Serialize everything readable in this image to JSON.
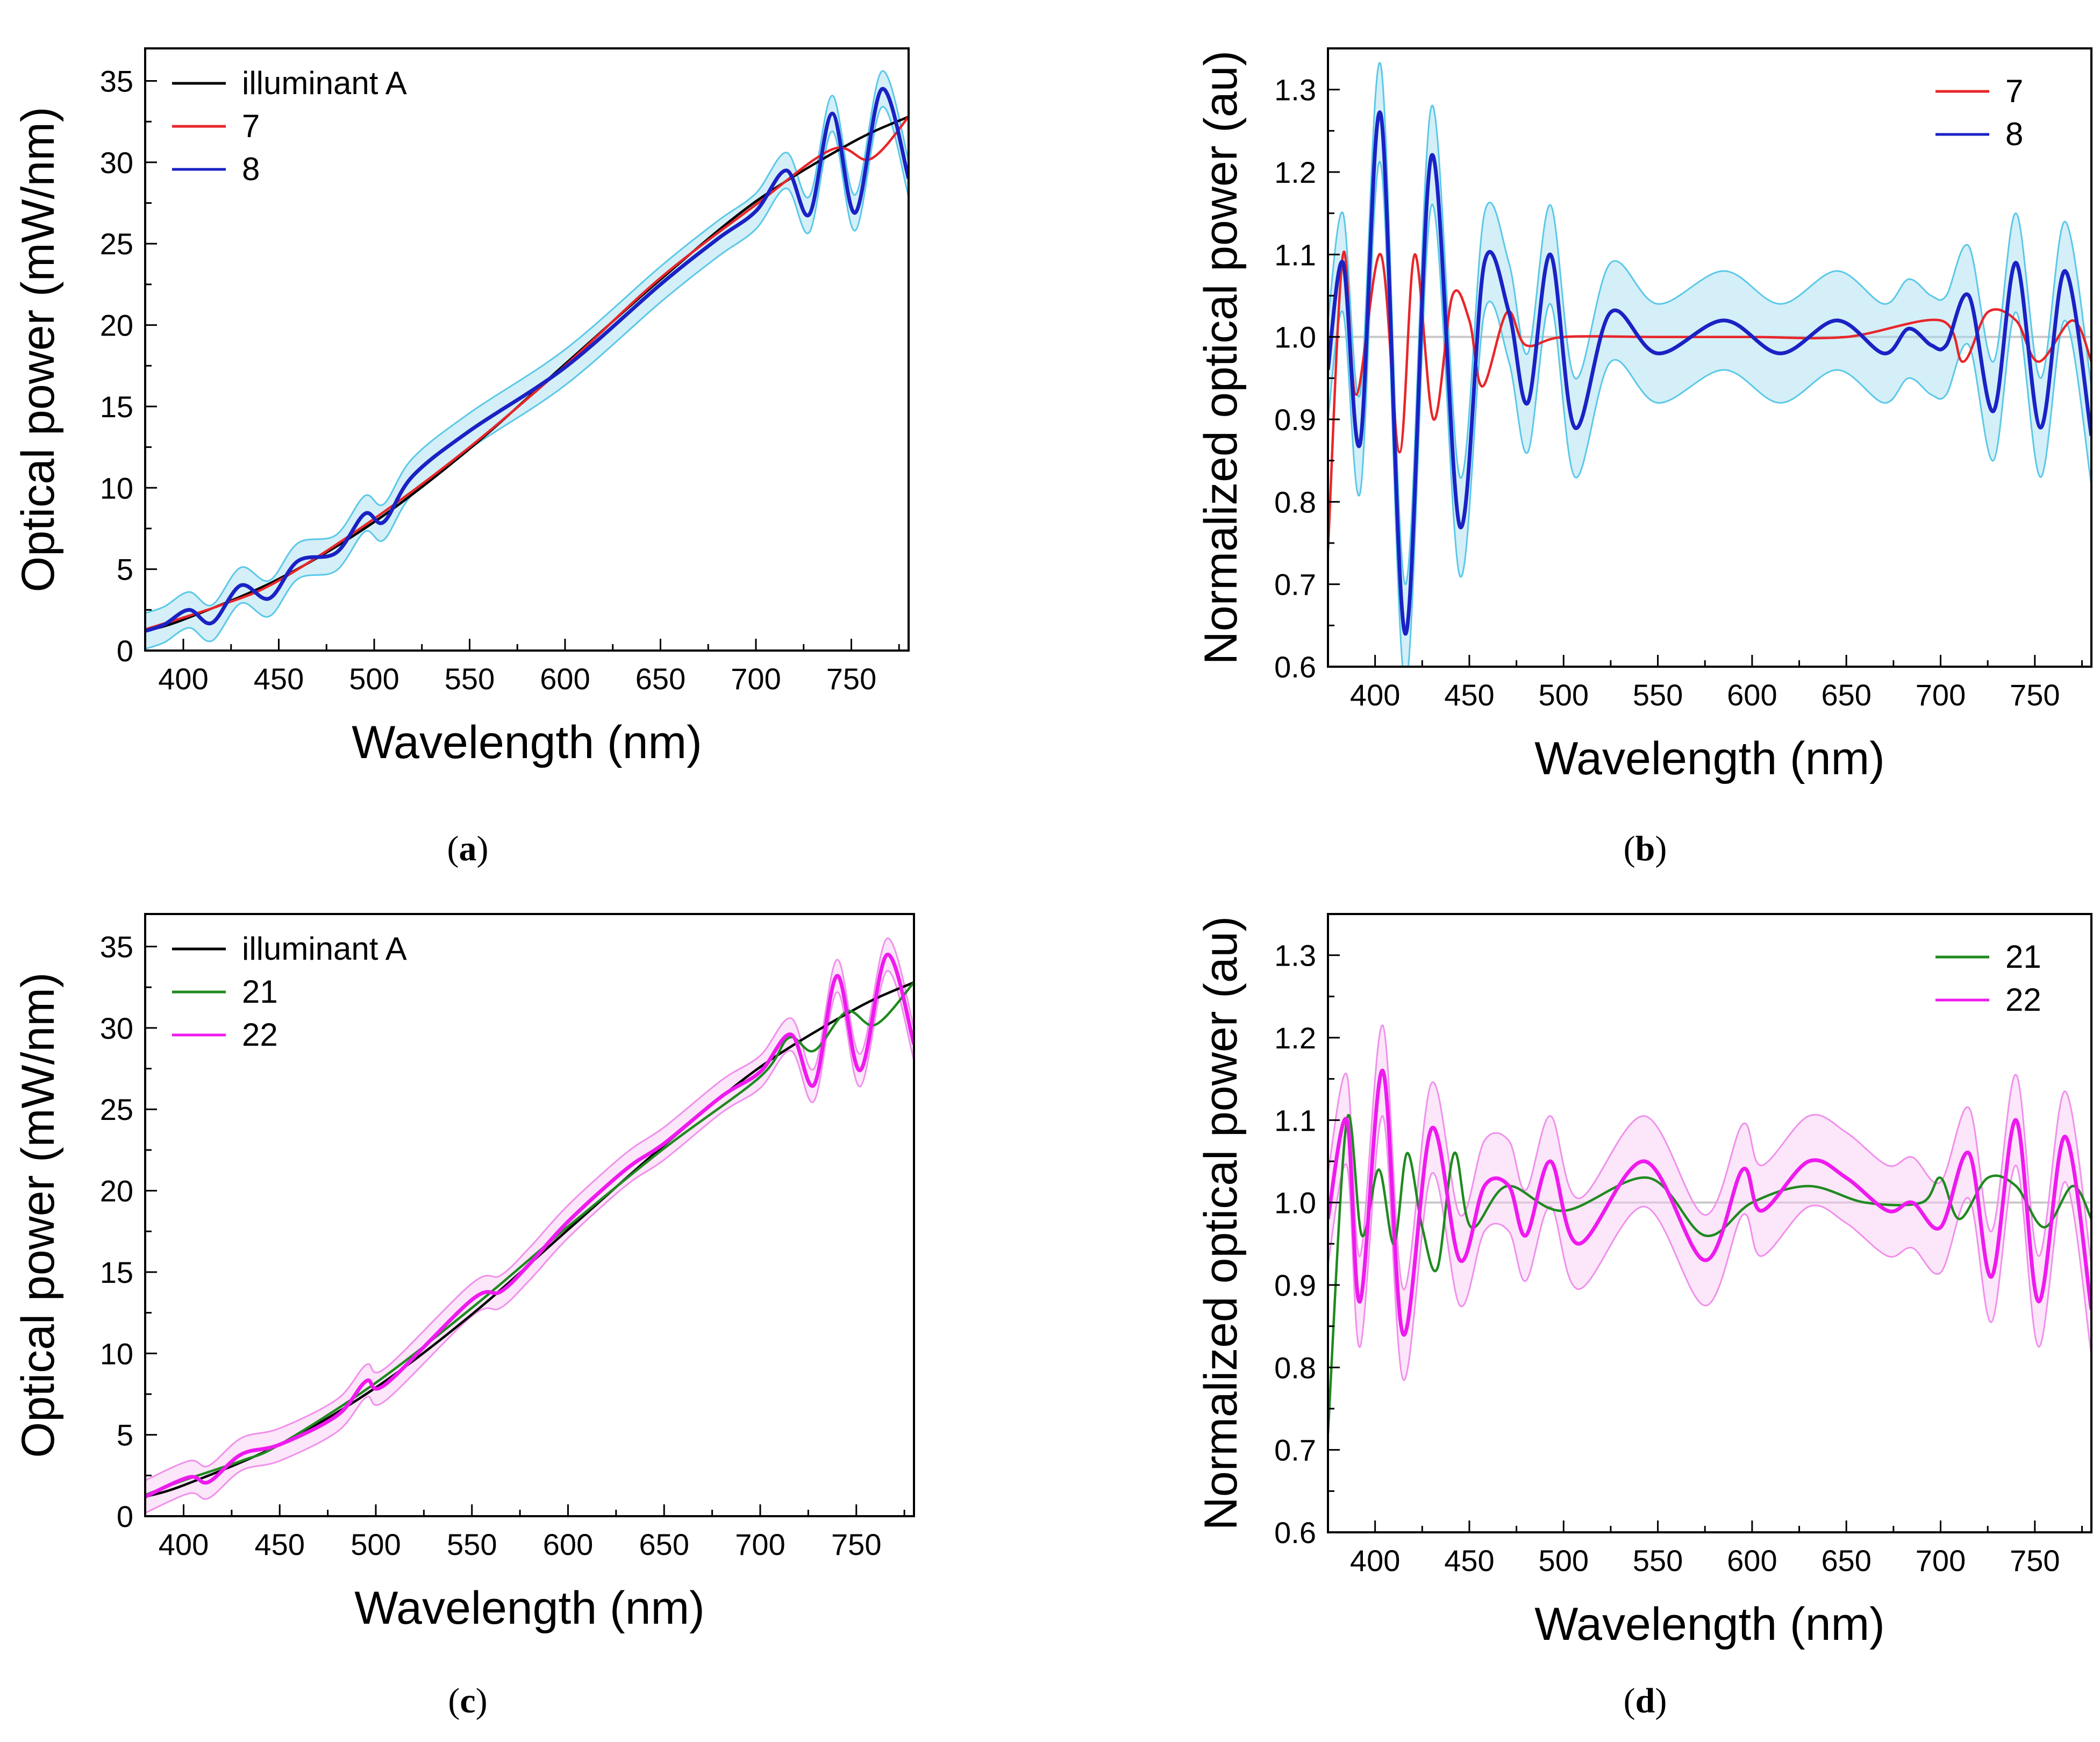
{
  "chart_data": [
    {
      "id": "a",
      "caption": "(a)",
      "type": "line",
      "xlabel": "Wavelength (nm)",
      "ylabel": "Optical power (mW/nm)",
      "xlim": [
        380,
        780
      ],
      "ylim": [
        0,
        37
      ],
      "xticks": [
        400,
        450,
        500,
        550,
        600,
        650,
        700,
        750
      ],
      "yticks": [
        0,
        5,
        10,
        15,
        20,
        25,
        30,
        35
      ],
      "legend": [
        "illuminant A",
        "7",
        "8"
      ],
      "legend_position": "top-left",
      "colors": {
        "illuminant A": "#000000",
        "7": "#e8262a",
        "8": "#1a22c4",
        "band": "#9fdcf0",
        "band_edge": "#5bc8e8"
      },
      "series": [
        {
          "name": "illuminant A",
          "x": [
            380,
            400,
            450,
            500,
            550,
            600,
            650,
            700,
            750,
            780
          ],
          "y": [
            1.2,
            1.9,
            4.4,
            7.9,
            12.4,
            17.6,
            22.8,
            27.6,
            31.2,
            32.8
          ]
        },
        {
          "name": "7",
          "x": [
            380,
            420,
            450,
            500,
            550,
            600,
            650,
            700,
            740,
            760,
            780
          ],
          "y": [
            1.3,
            2.8,
            4.3,
            8.1,
            12.5,
            17.5,
            22.9,
            27.4,
            30.8,
            30.2,
            32.8
          ]
        },
        {
          "name": "8",
          "x": [
            380,
            390,
            403,
            415,
            430,
            445,
            460,
            480,
            495,
            505,
            520,
            550,
            600,
            650,
            680,
            700,
            716,
            728,
            740,
            752,
            766,
            780
          ],
          "y": [
            1.2,
            1.6,
            2.5,
            1.7,
            4.0,
            3.2,
            5.5,
            6.0,
            8.4,
            7.9,
            10.7,
            13.5,
            17.4,
            22.5,
            25.3,
            27.0,
            29.5,
            26.8,
            33.0,
            26.9,
            34.5,
            29.0
          ]
        }
      ]
    },
    {
      "id": "b",
      "caption": "(b)",
      "type": "line",
      "xlabel": "Wavelength (nm)",
      "ylabel": "Normalized optical power (au)",
      "xlim": [
        375,
        780
      ],
      "ylim": [
        0.6,
        1.35
      ],
      "xticks": [
        400,
        450,
        500,
        550,
        600,
        650,
        700,
        750
      ],
      "yticks": [
        0.6,
        0.7,
        0.8,
        0.9,
        1.0,
        1.1,
        1.2,
        1.3
      ],
      "legend": [
        "7",
        "8"
      ],
      "legend_position": "top-right",
      "colors": {
        "7": "#e8262a",
        "8": "#1a22c4",
        "band": "#9fdcf0",
        "band_edge": "#5bc8e8",
        "reference": "#c8c8c8"
      },
      "series": [
        {
          "name": "7",
          "x": [
            375,
            383,
            390,
            403,
            413,
            421,
            431,
            441,
            450,
            457,
            470,
            480,
            500,
            550,
            600,
            650,
            700,
            712,
            725,
            740,
            752,
            770,
            780
          ],
          "y": [
            0.74,
            1.1,
            0.93,
            1.1,
            0.86,
            1.1,
            0.9,
            1.05,
            1.02,
            0.94,
            1.03,
            0.99,
            1.0,
            1.0,
            1.0,
            1.0,
            1.02,
            0.97,
            1.03,
            1.02,
            0.97,
            1.02,
            0.97
          ]
        },
        {
          "name": "8",
          "x": [
            375,
            383,
            392,
            403,
            416,
            430,
            445,
            458,
            471,
            481,
            493,
            506,
            525,
            550,
            585,
            615,
            645,
            670,
            683,
            695,
            703,
            715,
            728,
            740,
            753,
            766,
            780
          ],
          "y": [
            0.96,
            1.09,
            0.87,
            1.27,
            0.64,
            1.22,
            0.77,
            1.09,
            1.03,
            0.92,
            1.1,
            0.89,
            1.03,
            0.98,
            1.02,
            0.98,
            1.02,
            0.98,
            1.01,
            0.99,
            0.99,
            1.05,
            0.91,
            1.09,
            0.89,
            1.08,
            0.88
          ]
        }
      ]
    },
    {
      "id": "c",
      "caption": "(c)",
      "type": "line",
      "xlabel": "Wavelength (nm)",
      "ylabel": "Optical power (mW/nm)",
      "xlim": [
        380,
        780
      ],
      "ylim": [
        0,
        37
      ],
      "xticks": [
        400,
        450,
        500,
        550,
        600,
        650,
        700,
        750
      ],
      "yticks": [
        0,
        5,
        10,
        15,
        20,
        25,
        30,
        35
      ],
      "legend": [
        "illuminant A",
        "21",
        "22"
      ],
      "legend_position": "top-left",
      "colors": {
        "illuminant A": "#000000",
        "21": "#1f8a1f",
        "22": "#ee1aee",
        "band": "#f8c8f4",
        "band_edge": "#f090ec"
      },
      "series": [
        {
          "name": "illuminant A",
          "x": [
            380,
            400,
            450,
            500,
            550,
            600,
            650,
            700,
            750,
            780
          ],
          "y": [
            1.2,
            1.9,
            4.4,
            7.9,
            12.4,
            17.6,
            22.8,
            27.6,
            31.2,
            32.8
          ]
        },
        {
          "name": "21",
          "x": [
            380,
            400,
            430,
            450,
            500,
            550,
            590,
            600,
            650,
            700,
            715,
            728,
            745,
            760,
            780
          ],
          "y": [
            1.3,
            2.2,
            3.4,
            4.4,
            8.2,
            12.8,
            16.8,
            17.8,
            22.6,
            27.0,
            29.4,
            28.6,
            31.0,
            30.2,
            32.8
          ]
        },
        {
          "name": "22",
          "x": [
            380,
            403,
            413,
            430,
            450,
            480,
            495,
            505,
            550,
            565,
            580,
            600,
            630,
            650,
            680,
            700,
            716,
            728,
            740,
            752,
            766,
            780
          ],
          "y": [
            1.2,
            2.4,
            2.1,
            3.8,
            4.4,
            6.2,
            8.3,
            8.1,
            13.3,
            13.8,
            15.5,
            18.1,
            21.3,
            22.9,
            25.8,
            27.3,
            29.6,
            26.5,
            33.2,
            27.4,
            34.5,
            29.0
          ]
        }
      ]
    },
    {
      "id": "d",
      "caption": "(d)",
      "type": "line",
      "xlabel": "Wavelength (nm)",
      "ylabel": "Normalized optical power (au)",
      "xlim": [
        375,
        780
      ],
      "ylim": [
        0.6,
        1.35
      ],
      "xticks": [
        400,
        450,
        500,
        550,
        600,
        650,
        700,
        750
      ],
      "yticks": [
        0.6,
        0.7,
        0.8,
        0.9,
        1.0,
        1.1,
        1.2,
        1.3
      ],
      "legend": [
        "21",
        "22"
      ],
      "legend_position": "top-right",
      "colors": {
        "21": "#1f8a1f",
        "22": "#ee1aee",
        "band": "#f8c8f4",
        "band_edge": "#f090ec",
        "reference": "#c8c8c8"
      },
      "series": [
        {
          "name": "21",
          "x": [
            375,
            385,
            393,
            402,
            410,
            417,
            425,
            433,
            442,
            451,
            470,
            500,
            545,
            575,
            600,
            630,
            660,
            690,
            700,
            710,
            725,
            740,
            755,
            770,
            780
          ],
          "y": [
            0.72,
            1.1,
            0.96,
            1.04,
            0.95,
            1.06,
            0.97,
            0.92,
            1.06,
            0.97,
            1.02,
            0.99,
            1.03,
            0.96,
            1.0,
            1.02,
            1.0,
            1.0,
            1.03,
            0.98,
            1.03,
            1.02,
            0.97,
            1.02,
            0.98
          ]
        },
        {
          "name": "22",
          "x": [
            375,
            385,
            392,
            404,
            415,
            430,
            445,
            458,
            471,
            480,
            493,
            508,
            543,
            575,
            595,
            605,
            630,
            650,
            672,
            685,
            700,
            715,
            727,
            740,
            752,
            766,
            780
          ],
          "y": [
            0.98,
            1.1,
            0.88,
            1.16,
            0.84,
            1.09,
            0.93,
            1.02,
            1.02,
            0.96,
            1.05,
            0.95,
            1.05,
            0.93,
            1.04,
            0.99,
            1.05,
            1.03,
            0.99,
            1.0,
            0.97,
            1.06,
            0.91,
            1.1,
            0.88,
            1.08,
            0.87
          ]
        }
      ]
    }
  ]
}
